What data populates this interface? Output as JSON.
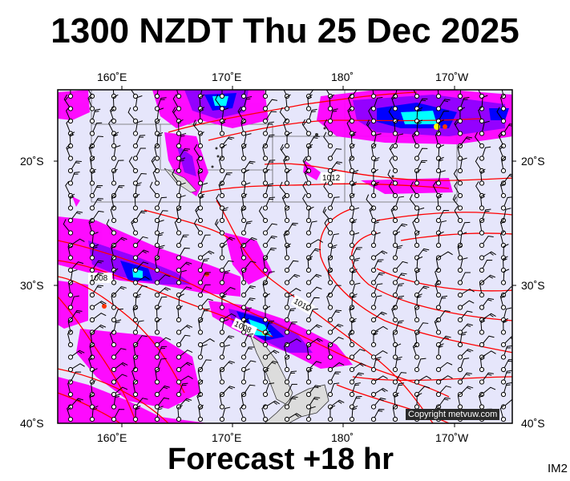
{
  "title": "1300 NZDT Thu 25 Dec 2025",
  "footer": "Forecast +18 hr",
  "product_code": "IM2",
  "copyright": "Copyright metvuw.com",
  "axes": {
    "top_lon": [
      "160˚E",
      "170˚E",
      "180˚",
      "170˚W"
    ],
    "bottom_lon": [
      "160˚E",
      "170˚E",
      "180˚",
      "170˚W"
    ],
    "left_lat": [
      "20˚S",
      "30˚S",
      "40˚S"
    ],
    "right_lat": [
      "20˚S",
      "30˚S",
      "40˚S"
    ]
  },
  "isobar_labels": [
    "1012",
    "1008",
    "1012",
    "1008"
  ],
  "colors": {
    "ocean": "#e6e6fb",
    "isobar": "#ff0000",
    "rain_light": "#ff00ff",
    "rain_mid": "#0000ff",
    "rain_heavy": "#00ffff",
    "land": "#dddddd"
  }
}
